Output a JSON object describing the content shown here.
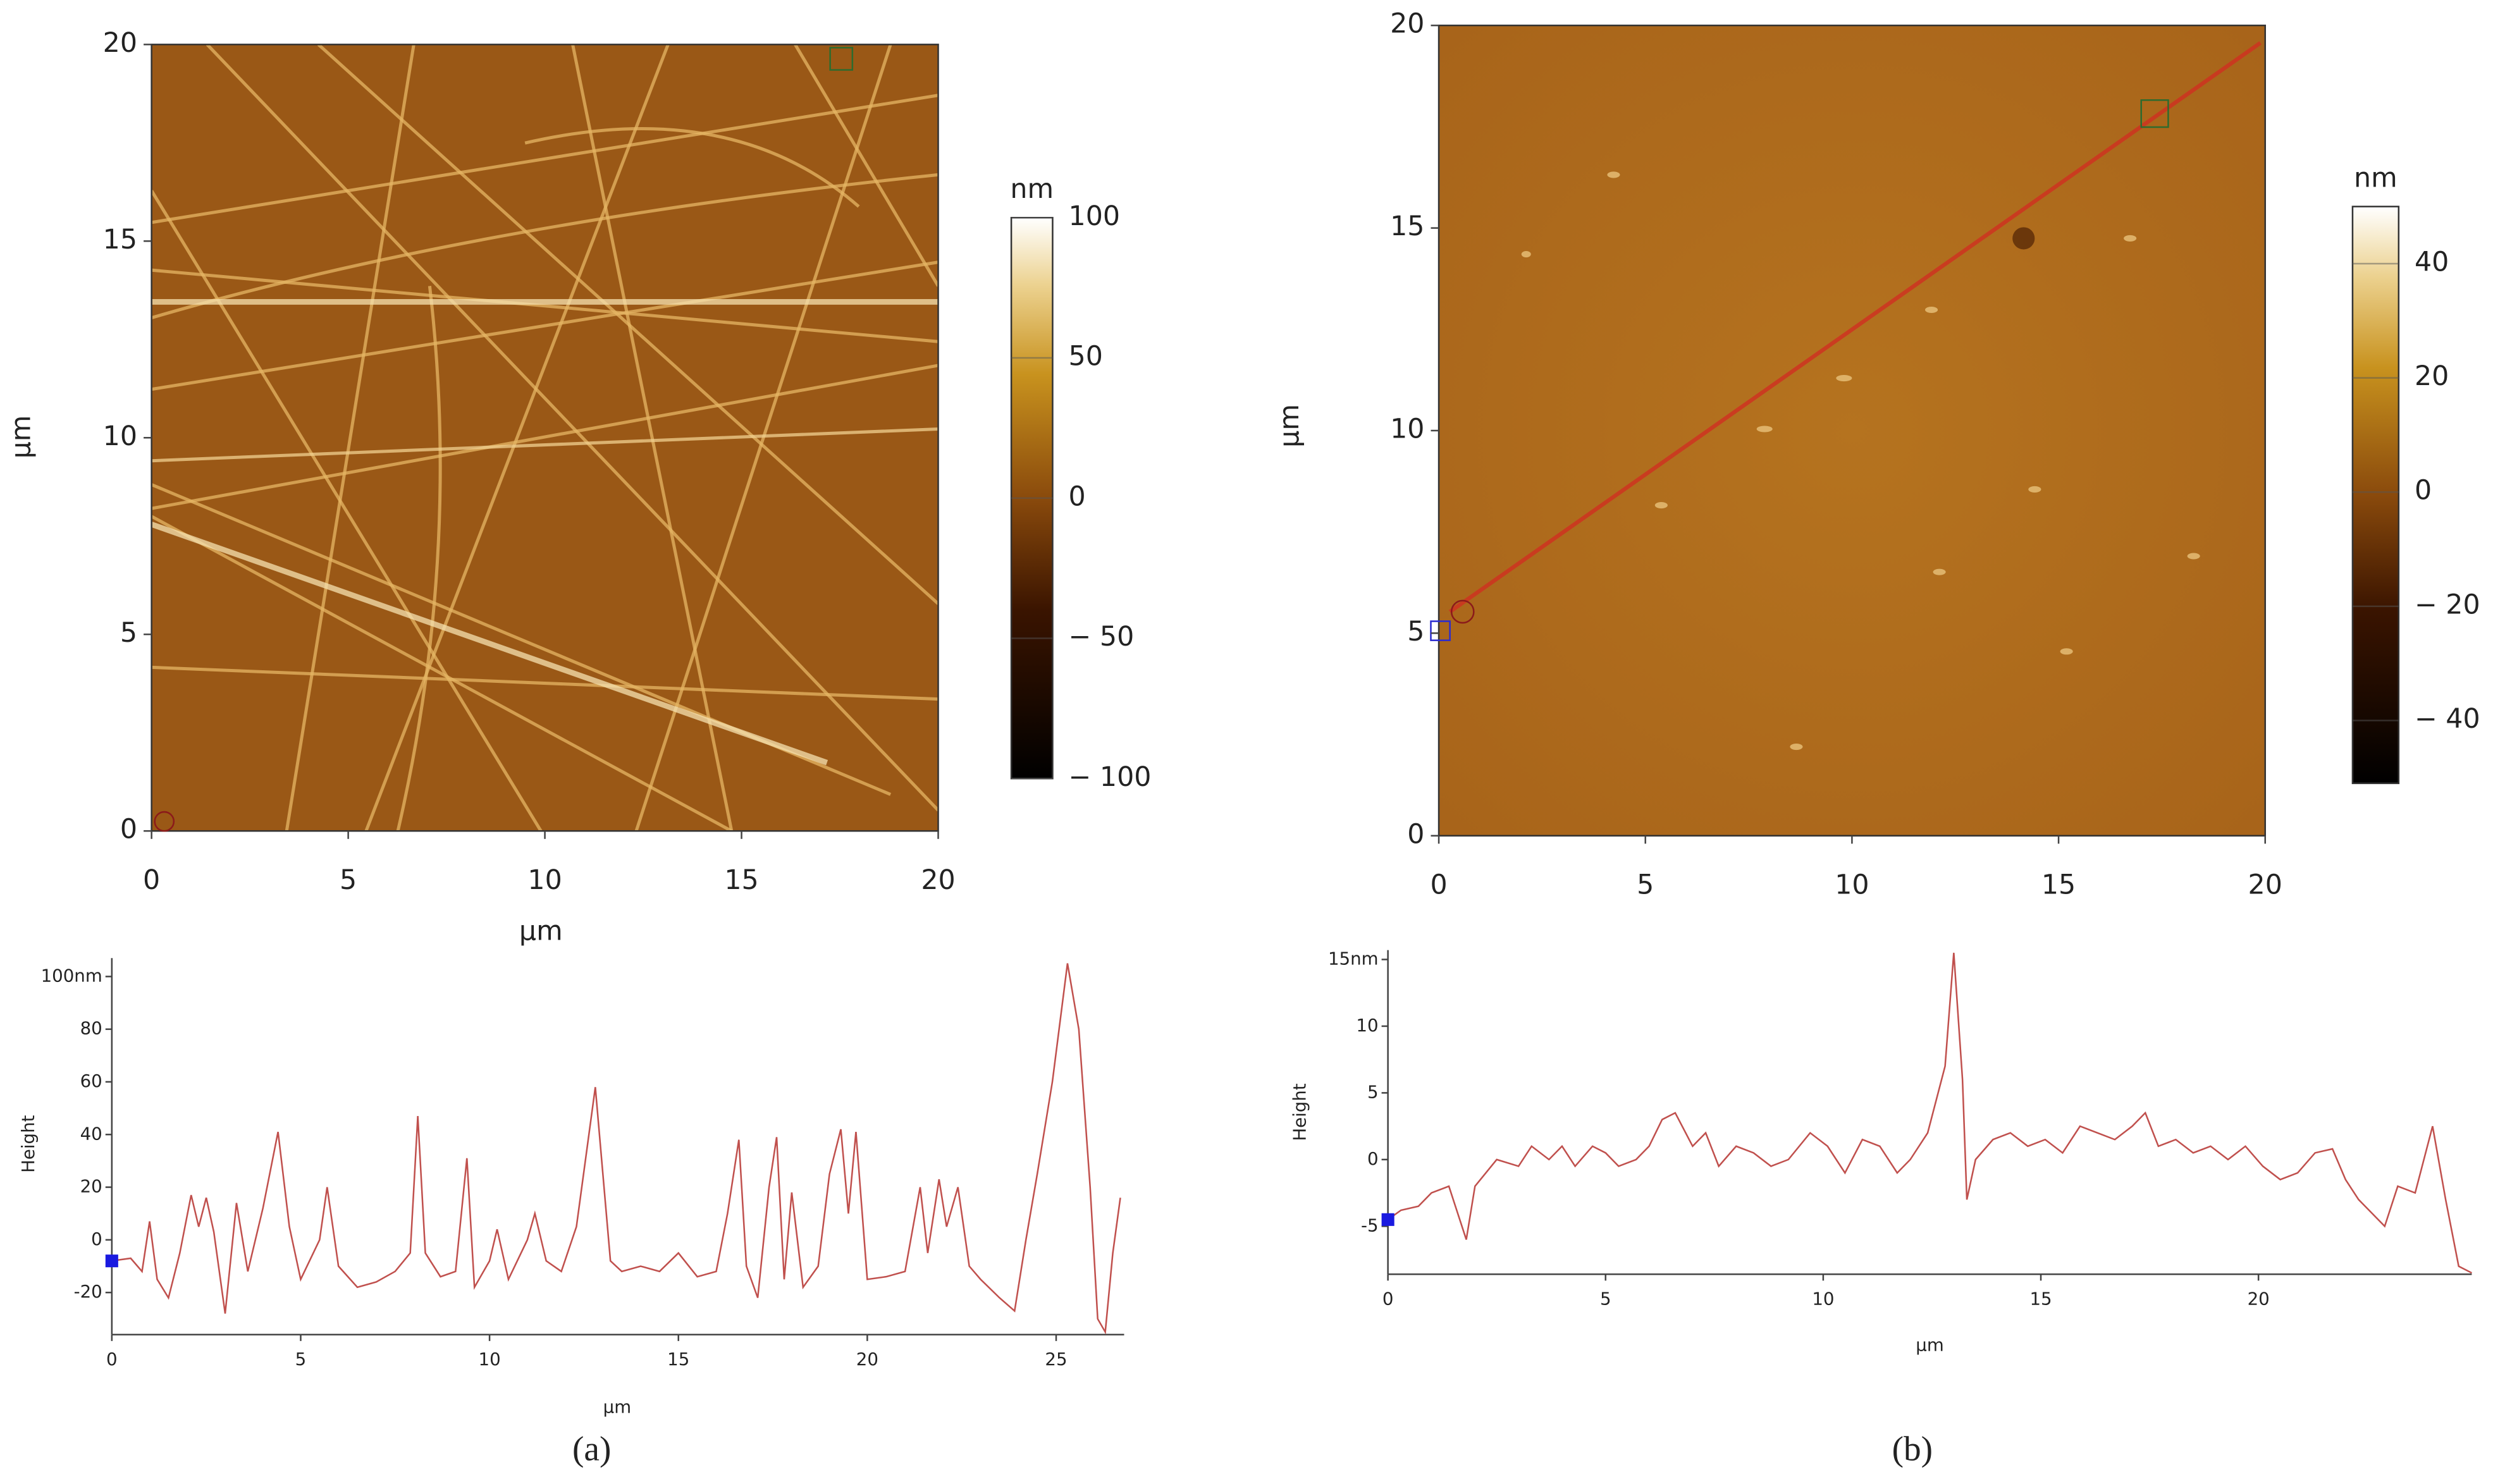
{
  "captions": [
    "(a)",
    "(b)"
  ],
  "chart_data": [
    {
      "type": "image",
      "xlim": [
        0,
        20
      ],
      "ylim": [
        0,
        20
      ],
      "xticks": [
        0,
        5,
        10,
        15,
        20
      ],
      "yticks": [
        0,
        5,
        10,
        15,
        20
      ],
      "x_label": "µm",
      "y_label": "µm",
      "colorbar": {
        "title": "nm",
        "lim": [
          -100,
          100
        ],
        "ticks": [
          100,
          50,
          0,
          {
            "value": -50,
            "label": "− 50"
          },
          {
            "value": -100,
            "label": "− 100"
          }
        ]
      }
    },
    {
      "type": "line",
      "y_label": "Height",
      "x_label": "µm",
      "color": "#c0504d",
      "xlim": [
        0,
        26.8
      ],
      "ylim": [
        -36,
        107
      ],
      "xticks": [
        0,
        5,
        10,
        15,
        20,
        25
      ],
      "yticks": [
        {
          "value": 100,
          "label": "100nm"
        },
        80,
        60,
        40,
        20,
        0,
        -20
      ],
      "x": [
        0,
        0.5,
        0.8,
        1.0,
        1.2,
        1.5,
        1.8,
        2.1,
        2.3,
        2.5,
        2.7,
        3.0,
        3.3,
        3.6,
        4.0,
        4.4,
        4.7,
        5.0,
        5.5,
        5.7,
        6.0,
        6.5,
        7.0,
        7.5,
        7.9,
        8.1,
        8.3,
        8.7,
        9.1,
        9.4,
        9.6,
        10.0,
        10.2,
        10.5,
        11.0,
        11.2,
        11.5,
        11.9,
        12.3,
        12.8,
        13.2,
        13.5,
        14.0,
        14.5,
        15.0,
        15.5,
        16.0,
        16.3,
        16.6,
        16.8,
        17.1,
        17.4,
        17.6,
        17.8,
        18.0,
        18.3,
        18.7,
        19.0,
        19.3,
        19.5,
        19.7,
        20.0,
        20.5,
        21.0,
        21.4,
        21.6,
        21.9,
        22.1,
        22.4,
        22.7,
        23.0,
        23.5,
        23.9,
        24.2,
        24.5,
        24.9,
        25.3,
        25.6,
        25.9,
        26.1,
        26.3,
        26.5,
        26.7
      ],
      "values": [
        -8,
        -7,
        -12,
        7,
        -15,
        -22,
        -5,
        17,
        5,
        16,
        3,
        -28,
        14,
        -12,
        12,
        41,
        5,
        -15,
        0,
        20,
        -10,
        -18,
        -16,
        -12,
        -5,
        47,
        -5,
        -14,
        -12,
        31,
        -18,
        -8,
        4,
        -15,
        0,
        10,
        -8,
        -12,
        5,
        58,
        -8,
        -12,
        -10,
        -12,
        -5,
        -14,
        -12,
        10,
        38,
        -10,
        -22,
        20,
        39,
        -15,
        18,
        -18,
        -10,
        25,
        42,
        10,
        41,
        -15,
        -14,
        -12,
        20,
        -5,
        23,
        5,
        20,
        -10,
        -15,
        -22,
        -27,
        0,
        25,
        60,
        105,
        80,
        20,
        -30,
        -35,
        -5,
        16
      ]
    },
    {
      "type": "image",
      "xlim": [
        0,
        20
      ],
      "ylim": [
        0,
        20
      ],
      "xticks": [
        0,
        5,
        10,
        15,
        20
      ],
      "yticks": [
        0,
        5,
        10,
        15,
        20
      ],
      "y_label": "µm",
      "colorbar": {
        "title": "nm",
        "lim": [
          -51,
          50
        ],
        "ticks": [
          40,
          20,
          0,
          {
            "value": -20,
            "label": "− 20"
          },
          {
            "value": -40,
            "label": "− 40"
          }
        ]
      }
    },
    {
      "type": "line",
      "y_label": "Height",
      "x_label": "µm",
      "color": "#c0504d",
      "xlim": [
        0,
        24.9
      ],
      "ylim": [
        -8.6,
        15.7
      ],
      "xticks": [
        0,
        5,
        10,
        15,
        20
      ],
      "yticks": [
        {
          "value": 15,
          "label": "15nm"
        },
        10,
        5,
        0,
        -5
      ],
      "x": [
        0,
        0.3,
        0.7,
        1.0,
        1.4,
        1.6,
        1.8,
        2.0,
        2.5,
        3.0,
        3.3,
        3.7,
        4.0,
        4.3,
        4.7,
        5.0,
        5.3,
        5.7,
        6.0,
        6.3,
        6.6,
        7.0,
        7.3,
        7.6,
        8.0,
        8.4,
        8.8,
        9.2,
        9.7,
        10.1,
        10.5,
        10.9,
        11.3,
        11.7,
        12.0,
        12.4,
        12.8,
        13.0,
        13.2,
        13.3,
        13.5,
        13.9,
        14.3,
        14.7,
        15.1,
        15.5,
        15.9,
        16.3,
        16.7,
        17.1,
        17.4,
        17.7,
        18.1,
        18.5,
        18.9,
        19.3,
        19.7,
        20.1,
        20.5,
        20.9,
        21.3,
        21.7,
        22.0,
        22.3,
        22.6,
        22.9,
        23.2,
        23.6,
        24.0,
        24.3,
        24.6,
        24.9
      ],
      "values": [
        -4.5,
        -3.8,
        -3.5,
        -2.5,
        -2,
        -4,
        -6,
        -2,
        0,
        -0.5,
        1,
        0,
        1,
        -0.5,
        1,
        0.5,
        -0.5,
        0,
        1,
        3,
        3.5,
        1,
        2,
        -0.5,
        1,
        0.5,
        -0.5,
        0,
        2,
        1,
        -1,
        1.5,
        1,
        -1,
        0,
        2,
        7,
        15.5,
        6,
        -3,
        0,
        1.5,
        2,
        1,
        1.5,
        0.5,
        2.5,
        2,
        1.5,
        2.5,
        3.5,
        1,
        1.5,
        0.5,
        1,
        0,
        1,
        -0.5,
        -1.5,
        -1,
        0.5,
        0.8,
        -1.5,
        -3,
        -4,
        -5,
        -2,
        -2.5,
        2.5,
        -3,
        -8,
        -8.5
      ]
    }
  ]
}
